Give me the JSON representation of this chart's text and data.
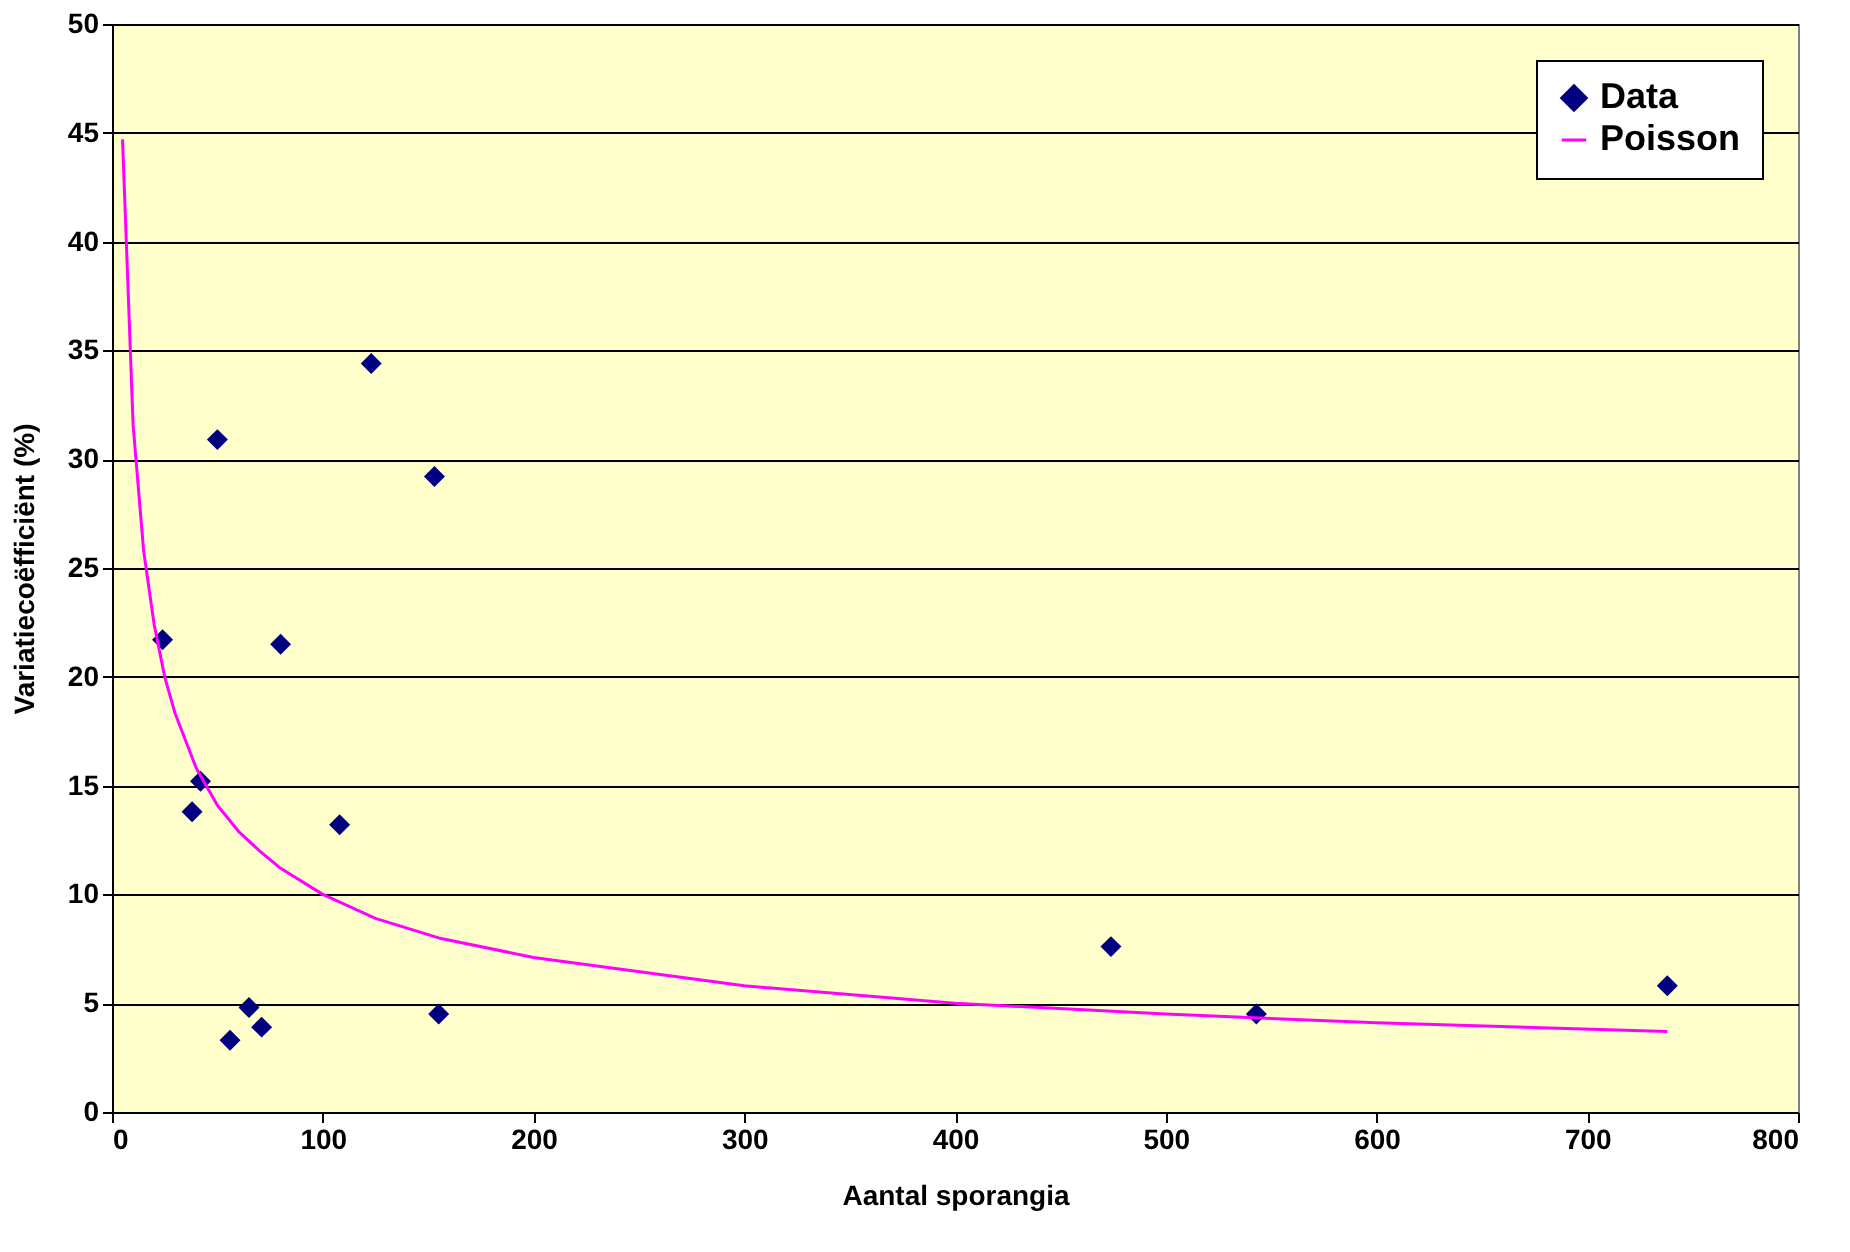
{
  "chart_data": {
    "type": "scatter",
    "xlabel": "Aantal sporangia",
    "ylabel": "Variatiecoëfficiënt  (%)",
    "xlim": [
      0,
      800
    ],
    "xticks": [
      0,
      100,
      200,
      300,
      400,
      500,
      600,
      700,
      800
    ],
    "ylim": [
      0,
      50
    ],
    "yticks": [
      0,
      5,
      10,
      15,
      20,
      25,
      30,
      35,
      40,
      45,
      50
    ],
    "grid": "y",
    "legend": "top right",
    "series": [
      {
        "name": "Data",
        "type": "scatter",
        "marker": "diamond",
        "color": "#000080",
        "x": [
          24,
          38,
          42,
          50,
          56,
          65,
          71,
          80,
          108,
          123,
          153,
          155,
          474,
          543,
          738
        ],
        "values": [
          21.7,
          13.8,
          15.2,
          30.9,
          3.3,
          4.8,
          3.9,
          21.5,
          13.2,
          34.4,
          29.2,
          4.5,
          7.6,
          4.5,
          5.8
        ]
      },
      {
        "name": "Poisson",
        "type": "line",
        "marker": "none",
        "color": "#ff00ff",
        "line_style": "solid",
        "x": [
          5,
          10,
          15,
          20,
          25,
          30,
          40,
          50,
          60,
          70,
          80,
          100,
          125,
          155,
          200,
          300,
          400,
          500,
          600,
          738
        ],
        "values": [
          44.7,
          31.6,
          25.8,
          22.4,
          20.0,
          18.3,
          15.8,
          14.1,
          12.9,
          12.0,
          11.2,
          10.0,
          8.9,
          8.0,
          7.1,
          5.8,
          5.0,
          4.5,
          4.1,
          3.7
        ]
      }
    ]
  }
}
